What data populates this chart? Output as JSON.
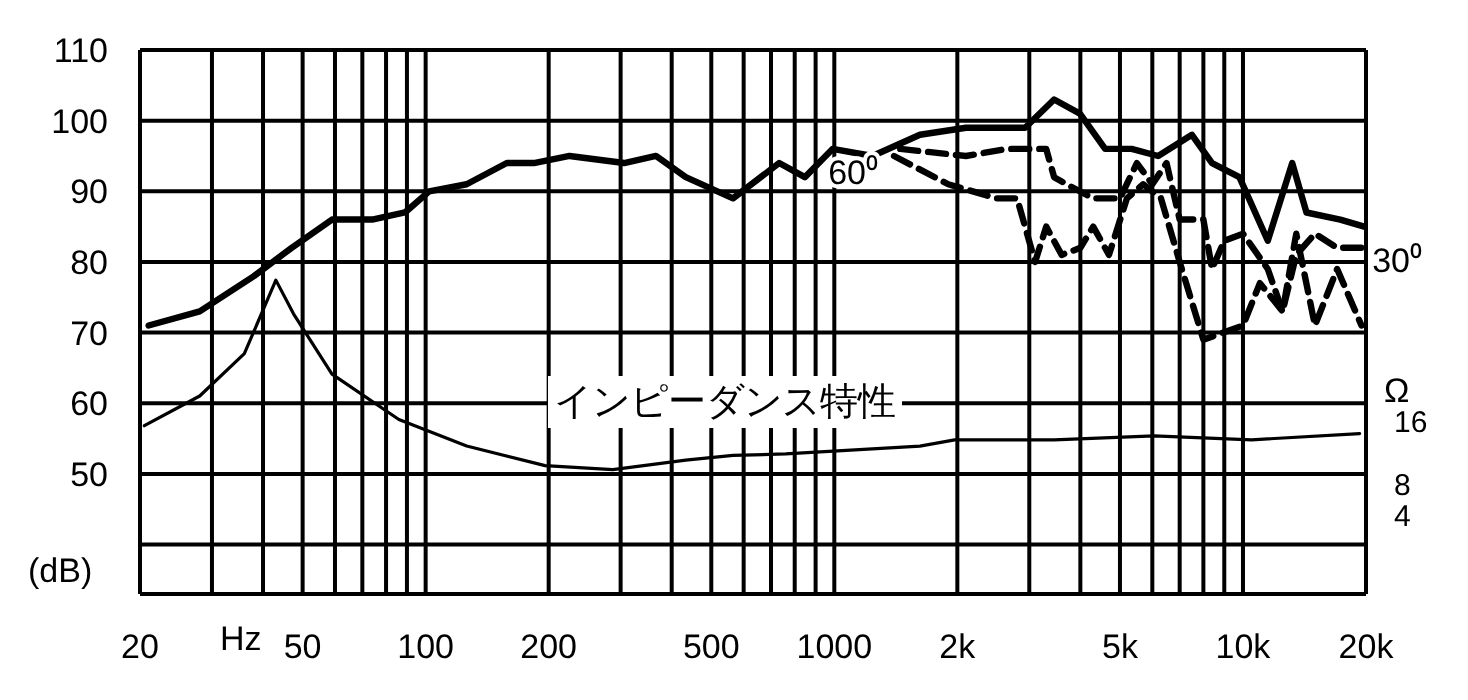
{
  "chart_data": {
    "type": "line",
    "xlabel": "Hz",
    "ylabel": "(dB)",
    "y2label": "Ω",
    "log": "x",
    "grid": true,
    "marker": "none",
    "xlim": [
      20,
      20000
    ],
    "xticks": [
      20,
      {
        "value": 30,
        "label": null
      },
      {
        "value": 40,
        "label": null
      },
      50,
      {
        "value": 60,
        "label": null
      },
      {
        "value": 70,
        "label": null
      },
      {
        "value": 80,
        "label": null
      },
      {
        "value": 90,
        "label": null
      },
      100,
      200,
      {
        "value": 300,
        "label": null
      },
      {
        "value": 400,
        "label": null
      },
      500,
      {
        "value": 600,
        "label": null
      },
      {
        "value": 700,
        "label": null
      },
      {
        "value": 800,
        "label": null
      },
      {
        "value": 900,
        "label": null
      },
      1000,
      {
        "value": 2000,
        "label": "2k"
      },
      {
        "value": 3000,
        "label": null
      },
      {
        "value": 4000,
        "label": null
      },
      {
        "value": 5000,
        "label": "5k"
      },
      {
        "value": 6000,
        "label": null
      },
      {
        "value": 7000,
        "label": null
      },
      {
        "value": 8000,
        "label": null
      },
      {
        "value": 9000,
        "label": null
      },
      {
        "value": 10000,
        "label": "10k"
      },
      {
        "value": 20000,
        "label": "20k"
      }
    ],
    "ylim": [
      33,
      110
    ],
    "yticks": [
      {
        "value": 40,
        "label": null
      },
      50,
      60,
      70,
      80,
      90,
      100,
      110
    ],
    "y2lim": [
      -6,
      63.5
    ],
    "y2ticks": [
      4,
      8,
      16
    ],
    "annotations": [
      "インピーダンス特性"
    ],
    "series": [
      {
        "color": "#000000",
        "line_style": "solid",
        "x": [
          21,
          28,
          38,
          47,
          59,
          74,
          89,
          102,
          126,
          158,
          184,
          225,
          306,
          366,
          433,
          565,
          733,
          847,
          990,
          1240,
          1620,
          2100,
          2640,
          2930,
          3450,
          3990,
          4600,
          5340,
          6200,
          7500,
          8400,
          9800,
          11500,
          13200,
          14300,
          17300,
          19800
        ],
        "values": [
          71,
          73,
          78,
          82,
          86,
          86,
          87,
          90,
          91,
          94,
          94,
          95,
          94,
          95,
          92,
          89,
          94,
          92,
          96,
          95,
          98,
          99,
          99,
          99,
          103,
          101,
          96,
          96,
          95,
          98,
          94,
          92,
          83,
          94,
          87,
          86,
          85
        ]
      },
      {
        "name": "60⁰",
        "color": "#000000",
        "line_style": "dashed",
        "x": [
          1400,
          1900,
          2500,
          2800,
          3100,
          3300,
          3600,
          4000,
          4300,
          4700,
          5200,
          5700,
          6300,
          7000,
          8000,
          10000,
          11000,
          12500,
          13500,
          15000,
          17000,
          19500
        ],
        "values": [
          95,
          91,
          89,
          89,
          80,
          85,
          81,
          82,
          85,
          81,
          89,
          91,
          89,
          80,
          69,
          71,
          77,
          73,
          84,
          71,
          79,
          71
        ]
      },
      {
        "name": "30⁰",
        "color": "#000000",
        "line_style": "dashed",
        "x": [
          1450,
          2100,
          2640,
          3300,
          3450,
          3700,
          4300,
          5000,
          5500,
          6000,
          6500,
          7000,
          8000,
          8400,
          9000,
          10000,
          11500,
          12500,
          13500,
          15000,
          17000,
          19800
        ],
        "values": [
          96,
          95,
          96,
          96,
          92,
          91,
          89,
          89,
          94,
          91,
          94,
          86,
          86,
          79,
          83,
          84,
          79,
          73,
          81,
          84,
          82,
          82
        ]
      },
      {
        "color": "#000000",
        "line_style": "solid",
        "axis": "y2",
        "x": [
          20.5,
          28,
          36,
          43,
          47.5,
          59,
          86,
          126,
          196,
          287,
          433,
          565,
          760,
          1620,
          1970,
          3450,
          6060,
          10500,
          19300
        ],
        "values": [
          15.5,
          19.3,
          24.7,
          34.1,
          29.8,
          22.1,
          16.3,
          12.9,
          10.4,
          9.9,
          11.1,
          11.7,
          11.9,
          12.9,
          13.7,
          13.7,
          14.2,
          13.7,
          14.5
        ]
      }
    ]
  }
}
